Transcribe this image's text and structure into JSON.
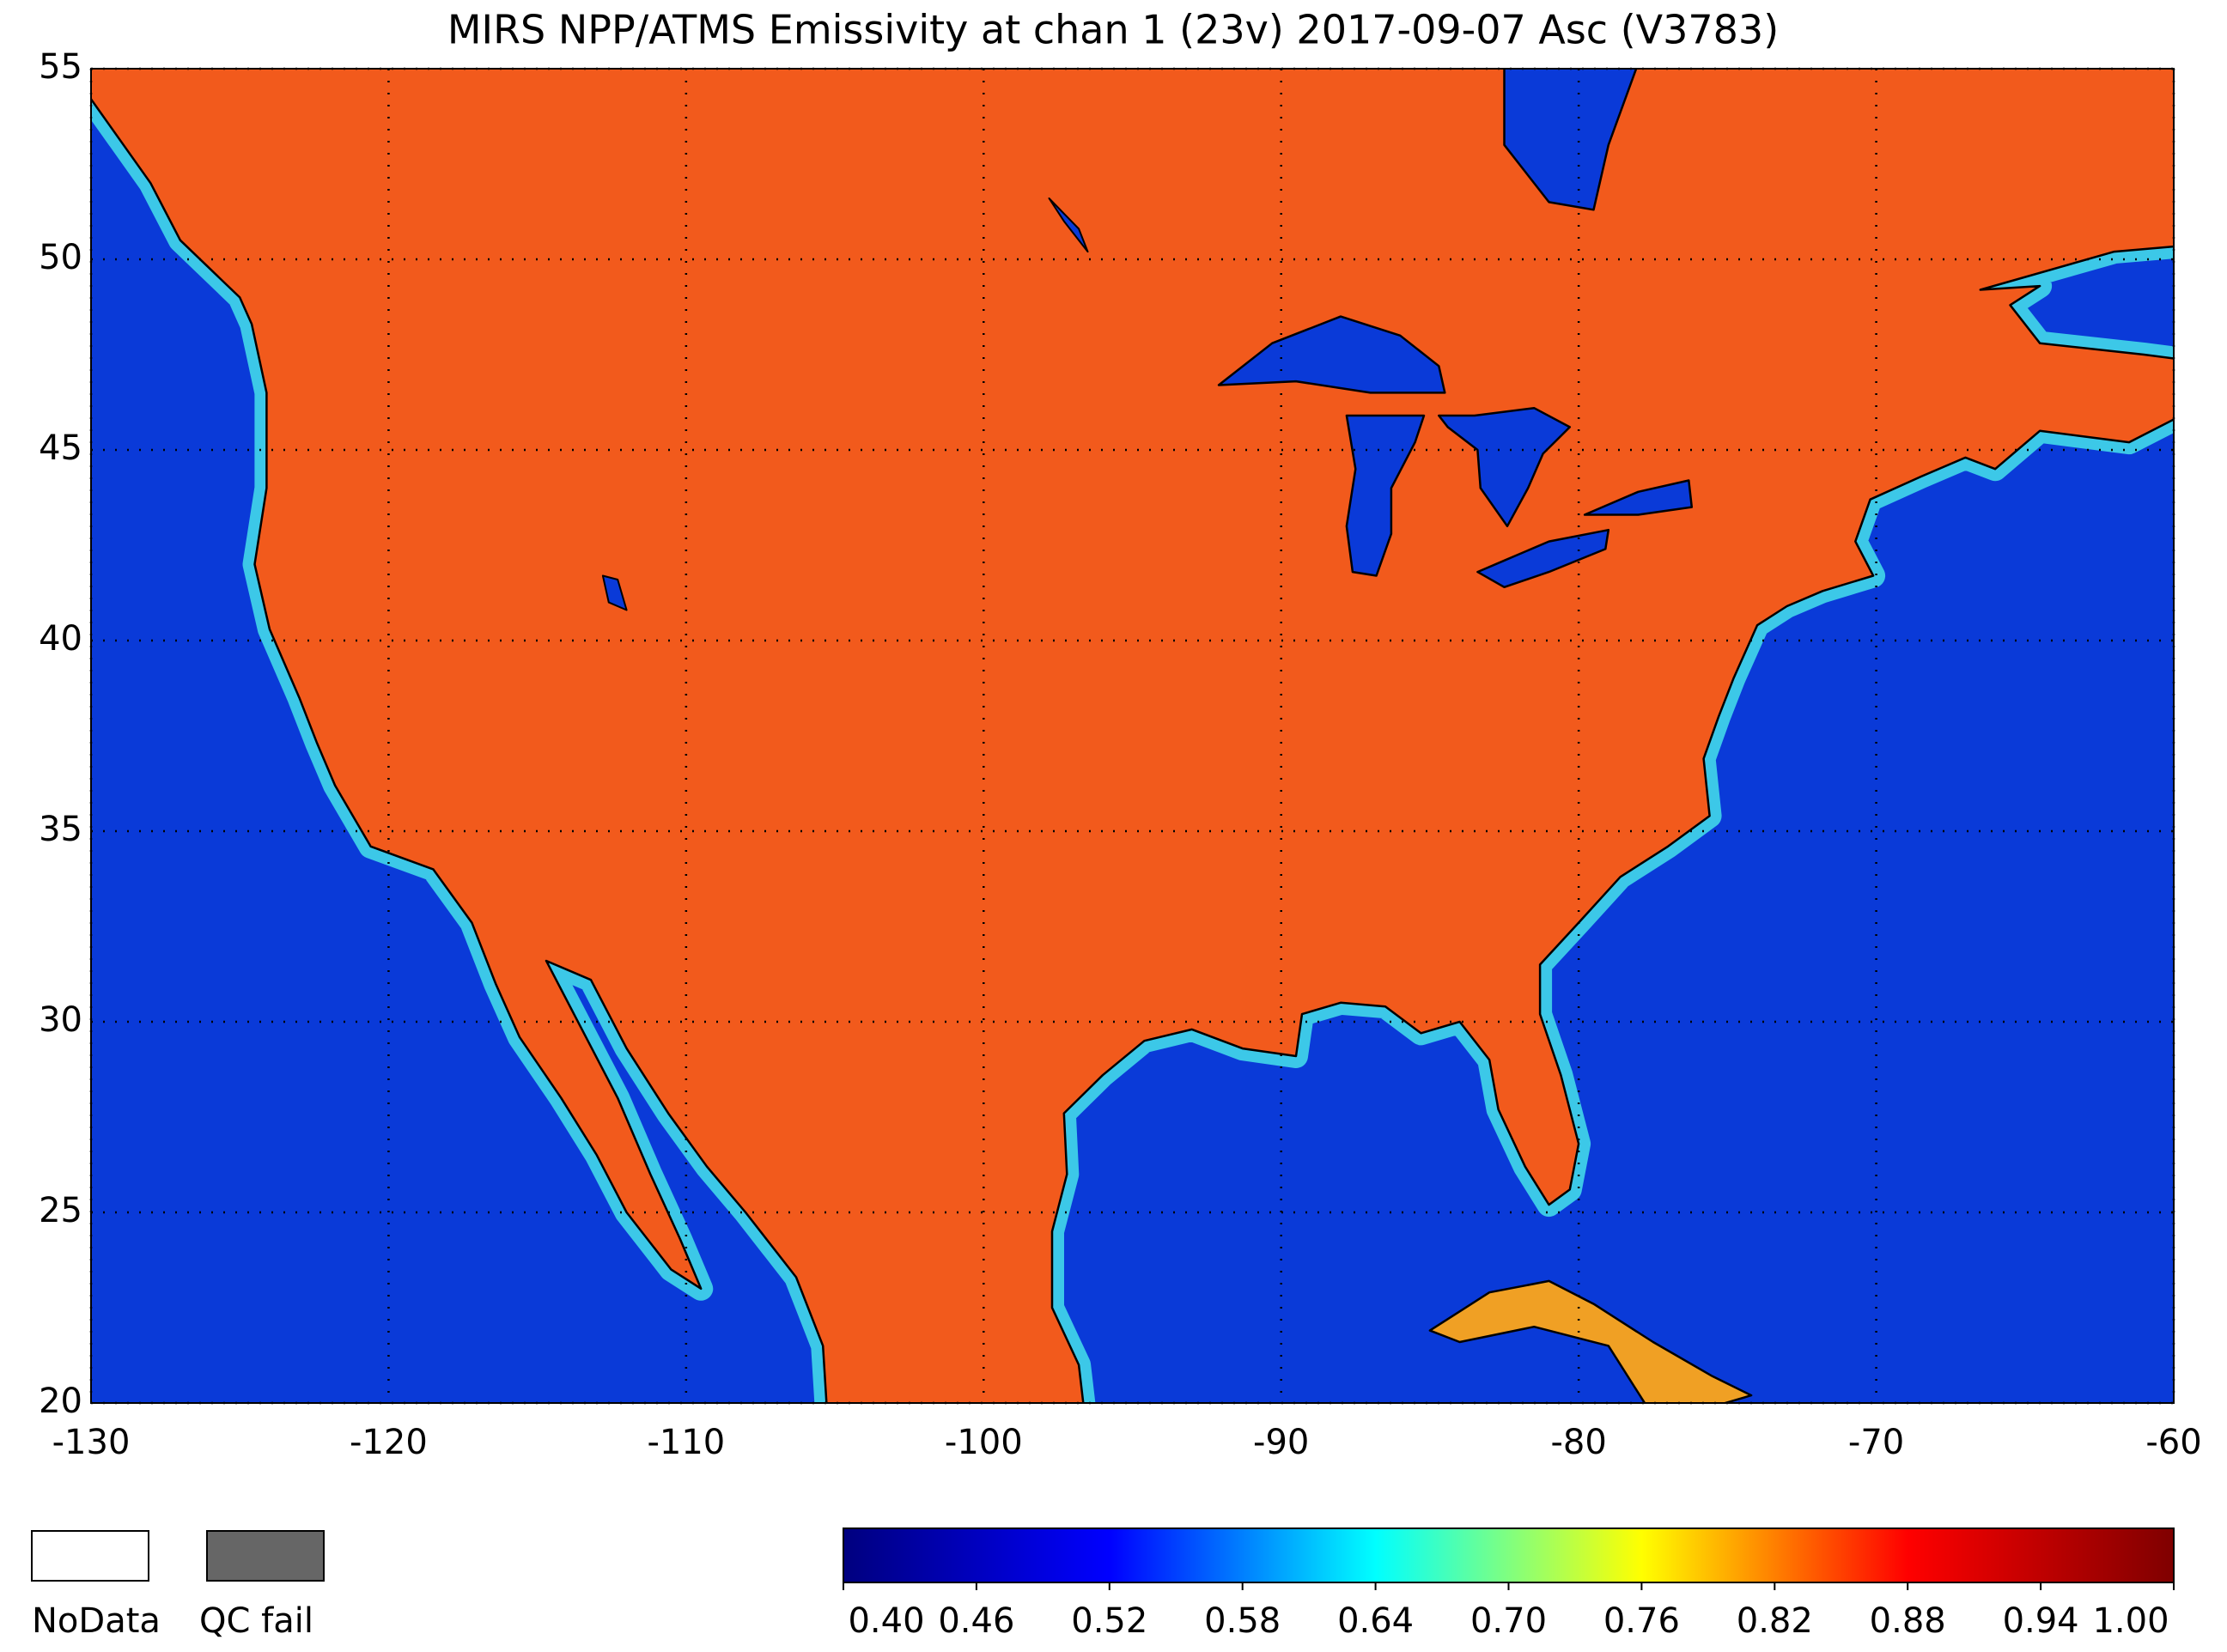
{
  "map": {
    "title": "MIRS NPP/ATMS Emissivity at chan 1 (23v) 2017-09-07 Asc  (V3783)",
    "xlim": [
      -130,
      -60
    ],
    "ylim": [
      20,
      55
    ],
    "xticks": [
      -130,
      -120,
      -110,
      -100,
      -90,
      -80,
      -70,
      -60
    ],
    "yticks": [
      20,
      25,
      30,
      35,
      40,
      45,
      50,
      55
    ],
    "grid": true,
    "legend": [
      "NoData",
      "QC fail"
    ],
    "colorbar": {
      "lim": [
        0.4,
        1.0
      ],
      "colors": [
        "#00007f",
        "#0000ff",
        "#00ffff",
        "#ffff00",
        "#ff0000",
        "#7f0000"
      ],
      "ticks": [
        {
          "value": 0.4,
          "label": "0.40"
        },
        {
          "value": 0.46,
          "label": "0.46"
        },
        {
          "value": 0.52,
          "label": "0.52"
        },
        {
          "value": 0.58,
          "label": "0.58"
        },
        {
          "value": 0.64,
          "label": "0.64"
        },
        {
          "value": 0.7,
          "label": "0.70"
        },
        {
          "value": 0.76,
          "label": "0.76"
        },
        {
          "value": 0.82,
          "label": "0.82"
        },
        {
          "value": 0.88,
          "label": "0.88"
        },
        {
          "value": 0.94,
          "label": "0.94"
        },
        {
          "value": 1.0,
          "label": "1.00"
        }
      ]
    }
  }
}
